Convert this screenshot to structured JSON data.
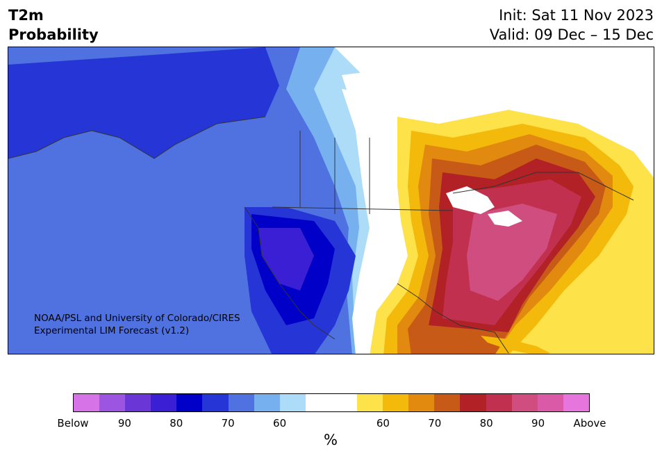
{
  "title": {
    "line1": "T2m",
    "line2": "Probability"
  },
  "header_right": {
    "init": "Init: Sat 11 Nov 2023",
    "valid": "Valid: 09 Dec – 15 Dec"
  },
  "credit": {
    "line1": "NOAA/PSL and University of Colorado/CIRES",
    "line2": "Experimental LIM Forecast (v1.2)"
  },
  "colorbar": {
    "unit": "%",
    "colors": [
      "#d673e6",
      "#9b55e0",
      "#6a37d6",
      "#3b1fd4",
      "#0000c8",
      "#2535d6",
      "#4f72e0",
      "#76b0ef",
      "#addcf8",
      "#ffffff",
      "#ffffff",
      "#fde24a",
      "#f3b90b",
      "#e18a0f",
      "#c85a17",
      "#b22126",
      "#c1304e",
      "#cf4d7f",
      "#db5aa8",
      "#e676de"
    ],
    "tick_labels": [
      {
        "label": "Below",
        "index": 0
      },
      {
        "label": "90",
        "index": 2
      },
      {
        "label": "80",
        "index": 4
      },
      {
        "label": "70",
        "index": 6
      },
      {
        "label": "60",
        "index": 8
      },
      {
        "label": "60",
        "index": 12
      },
      {
        "label": "70",
        "index": 14
      },
      {
        "label": "80",
        "index": 16
      },
      {
        "label": "90",
        "index": 18
      },
      {
        "label": "Above",
        "index": 20
      }
    ]
  }
}
